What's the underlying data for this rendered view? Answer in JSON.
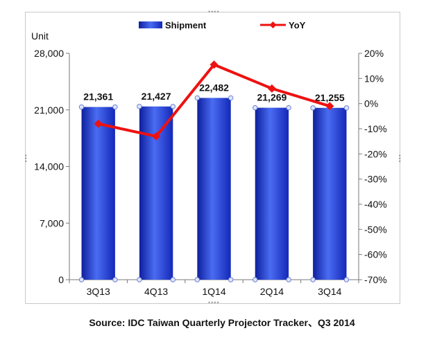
{
  "chart_data": {
    "type": "bar",
    "categories": [
      "3Q13",
      "4Q13",
      "1Q14",
      "2Q14",
      "3Q14"
    ],
    "series": [
      {
        "name": "Shipment",
        "type": "bar",
        "axis": "left",
        "values": [
          21361,
          21427,
          22482,
          21269,
          21255
        ],
        "data_labels": [
          "21,361",
          "21,427",
          "22,482",
          "21,269",
          "21,255"
        ],
        "color": "#2a3fd6"
      },
      {
        "name": "YoY",
        "type": "line",
        "axis": "right",
        "values": [
          -8,
          -13,
          15.5,
          6,
          -1
        ],
        "color": "#ee1111"
      }
    ],
    "ylabel": "Unit",
    "left_axis": {
      "min": 0,
      "max": 28000,
      "ticks": [
        "0",
        "7,000",
        "14,000",
        "21,000",
        "28,000"
      ],
      "tick_values": [
        0,
        7000,
        14000,
        21000,
        28000
      ]
    },
    "right_axis": {
      "min": -70,
      "max": 20,
      "ticks": [
        "-70%",
        "-60%",
        "-50%",
        "-40%",
        "-30%",
        "-20%",
        "-10%",
        "0%",
        "10%",
        "20%"
      ],
      "tick_values": [
        -70,
        -60,
        -50,
        -40,
        -30,
        -20,
        -10,
        0,
        10,
        20
      ]
    },
    "legend_position": "top",
    "grid": false
  },
  "source": "Source: IDC Taiwan Quarterly Projector Tracker、Q3 2014"
}
